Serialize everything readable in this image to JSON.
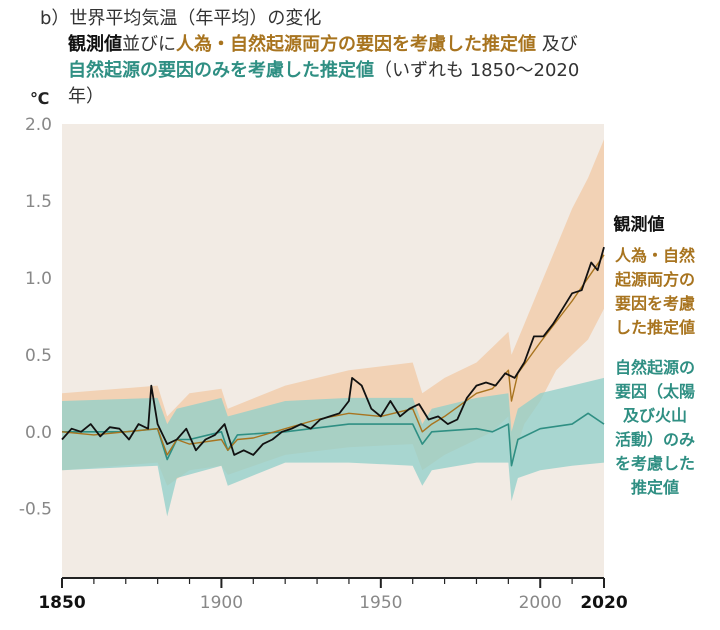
{
  "title": {
    "label": "b）世界平均気温（年平均）の変化",
    "obs": "観測値",
    "conj1": "並びに",
    "ant": "人為・自然起源両方の要因を考慮した推定値",
    "conj2": " 及び",
    "nat": "自然起源の要因のみを考慮した推定値",
    "note": "（いずれも 1850〜2020",
    "note2": "年）"
  },
  "legend": {
    "observed": "観測値",
    "anthropogenic_lines": [
      "人為・自然",
      "起源両方の",
      "要因を考慮",
      "した推定値"
    ],
    "natural_lines": [
      "自然起源の",
      "要因（太陽",
      "及び火山",
      "活動）のみ",
      "を考慮した",
      "推定値"
    ]
  },
  "colors": {
    "observed": "#111111",
    "anthropogenic": "#a8741f",
    "anthropogenic_band": "#f2c9a6",
    "natural": "#2f8f83",
    "natural_band": "#8fcfca",
    "background": "#f2ebe4"
  },
  "chart_data": {
    "type": "line",
    "title": "世界平均気温（年平均）の変化",
    "ylabel": "℃",
    "xlabel": "",
    "xlim": [
      1850,
      2020
    ],
    "ylim": [
      -0.95,
      2.0
    ],
    "yticks": [
      2.0,
      1.5,
      1.0,
      0.5,
      0.0,
      -0.5
    ],
    "ytick_labels": [
      "2.0",
      "1.5",
      "1.0",
      "0.5",
      "0.0",
      "-0.5"
    ],
    "xticks": [
      1850,
      1900,
      1950,
      2000,
      2020
    ],
    "xtick_labels": [
      "1850",
      "1900",
      "1950",
      "2000",
      "2020"
    ],
    "series": [
      {
        "name": "観測値",
        "x": [
          1850,
          1853,
          1856,
          1859,
          1862,
          1865,
          1868,
          1871,
          1874,
          1877,
          1878,
          1880,
          1883,
          1886,
          1889,
          1892,
          1895,
          1898,
          1901,
          1904,
          1907,
          1910,
          1913,
          1916,
          1919,
          1922,
          1925,
          1928,
          1931,
          1934,
          1937,
          1940,
          1941,
          1944,
          1947,
          1950,
          1953,
          1956,
          1959,
          1962,
          1965,
          1968,
          1971,
          1974,
          1977,
          1980,
          1983,
          1986,
          1989,
          1992,
          1995,
          1998,
          2001,
          2004,
          2007,
          2010,
          2013,
          2016,
          2018,
          2020
        ],
        "y": [
          -0.05,
          0.02,
          0.0,
          0.05,
          -0.03,
          0.03,
          0.02,
          -0.05,
          0.05,
          0.02,
          0.3,
          0.05,
          -0.08,
          -0.05,
          0.02,
          -0.12,
          -0.05,
          -0.02,
          0.05,
          -0.15,
          -0.12,
          -0.15,
          -0.08,
          -0.05,
          0.0,
          0.02,
          0.05,
          0.02,
          0.08,
          0.1,
          0.12,
          0.2,
          0.35,
          0.3,
          0.15,
          0.1,
          0.2,
          0.1,
          0.15,
          0.18,
          0.08,
          0.1,
          0.05,
          0.08,
          0.22,
          0.3,
          0.32,
          0.3,
          0.38,
          0.35,
          0.45,
          0.62,
          0.62,
          0.7,
          0.8,
          0.9,
          0.92,
          1.1,
          1.05,
          1.2
        ]
      },
      {
        "name": "人為・自然起源両方の要因を考慮した推定値",
        "x": [
          1850,
          1860,
          1870,
          1880,
          1883,
          1886,
          1890,
          1900,
          1902,
          1905,
          1910,
          1920,
          1930,
          1940,
          1950,
          1960,
          1963,
          1966,
          1970,
          1980,
          1985,
          1990,
          1991,
          1993,
          2000,
          2010,
          2020
        ],
        "y": [
          0.0,
          -0.02,
          0.0,
          0.02,
          -0.15,
          -0.05,
          -0.08,
          -0.05,
          -0.12,
          -0.05,
          -0.04,
          0.02,
          0.08,
          0.12,
          0.1,
          0.15,
          0.0,
          0.05,
          0.1,
          0.25,
          0.28,
          0.4,
          0.2,
          0.38,
          0.58,
          0.85,
          1.15
        ]
      },
      {
        "name": "自然起源の要因のみを考慮した推定値",
        "x": [
          1850,
          1870,
          1880,
          1883,
          1886,
          1890,
          1900,
          1902,
          1905,
          1920,
          1940,
          1960,
          1963,
          1966,
          1980,
          1985,
          1990,
          1991,
          1993,
          2000,
          2010,
          2015,
          2020
        ],
        "y": [
          0.0,
          0.0,
          0.02,
          -0.18,
          -0.05,
          -0.05,
          0.0,
          -0.12,
          -0.02,
          0.0,
          0.05,
          0.05,
          -0.08,
          0.0,
          0.02,
          0.0,
          0.05,
          -0.22,
          -0.05,
          0.02,
          0.05,
          0.12,
          0.05
        ]
      }
    ],
    "bands": [
      {
        "name": "人為・自然起源両方の要因を考慮した推定値",
        "x": [
          1850,
          1880,
          1883,
          1890,
          1900,
          1902,
          1920,
          1940,
          1960,
          1963,
          1970,
          1980,
          1985,
          1990,
          1991,
          1995,
          2000,
          2005,
          2010,
          2015,
          2020
        ],
        "low": [
          -0.25,
          -0.2,
          -0.35,
          -0.25,
          -0.22,
          -0.28,
          -0.15,
          -0.1,
          -0.08,
          -0.25,
          -0.15,
          -0.05,
          0.0,
          0.1,
          -0.2,
          0.05,
          0.2,
          0.4,
          0.5,
          0.6,
          0.8
        ],
        "high": [
          0.25,
          0.3,
          0.1,
          0.25,
          0.28,
          0.15,
          0.3,
          0.4,
          0.45,
          0.25,
          0.35,
          0.45,
          0.55,
          0.65,
          0.5,
          0.7,
          0.95,
          1.2,
          1.45,
          1.65,
          1.9
        ]
      },
      {
        "name": "自然起源の要因のみを考慮した推定値",
        "x": [
          1850,
          1880,
          1883,
          1886,
          1900,
          1902,
          1920,
          1940,
          1960,
          1963,
          1966,
          1980,
          1990,
          1991,
          1993,
          2000,
          2010,
          2020
        ],
        "low": [
          -0.25,
          -0.22,
          -0.55,
          -0.3,
          -0.22,
          -0.35,
          -0.2,
          -0.2,
          -0.22,
          -0.35,
          -0.25,
          -0.2,
          -0.2,
          -0.45,
          -0.3,
          -0.25,
          -0.22,
          -0.2
        ],
        "high": [
          0.2,
          0.22,
          0.05,
          0.15,
          0.22,
          0.1,
          0.2,
          0.22,
          0.22,
          0.05,
          0.15,
          0.22,
          0.25,
          0.0,
          0.15,
          0.25,
          0.3,
          0.35
        ]
      }
    ]
  }
}
